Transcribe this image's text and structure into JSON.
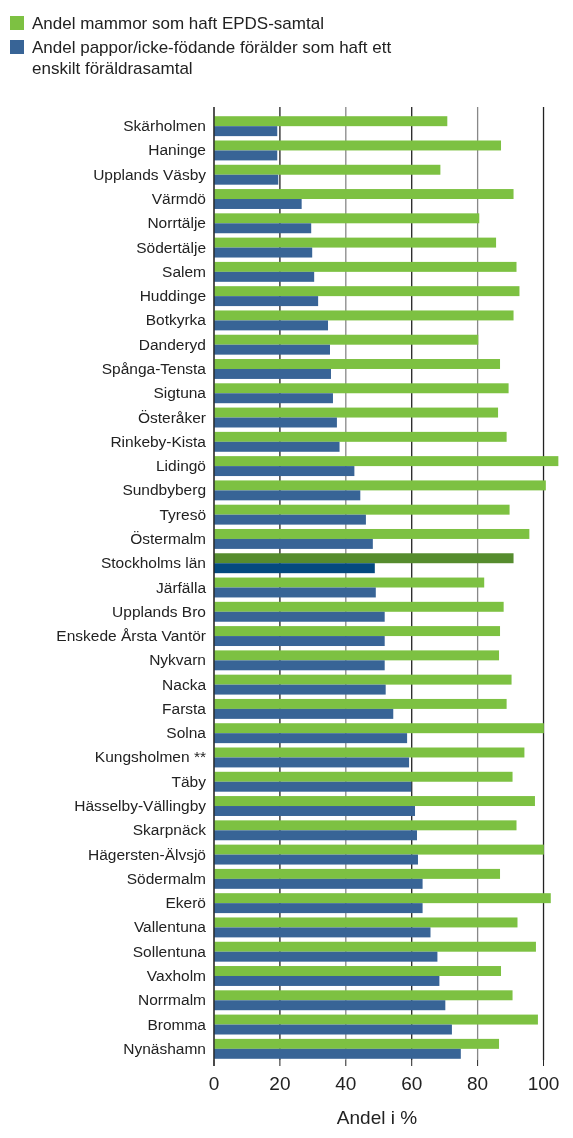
{
  "chart_data": {
    "type": "bar",
    "orientation": "horizontal",
    "xlabel": "Andel i %",
    "categories": [
      "Skärholmen",
      "Haninge",
      "Upplands Väsby",
      "Värmdö",
      "Norrtälje",
      "Södertälje",
      "Salem",
      "Huddinge",
      "Botkyrka",
      "Danderyd",
      "Spånga-Tensta",
      "Sigtuna",
      "Österåker",
      "Rinkeby-Kista",
      "Lidingö",
      "Sundbyberg",
      "Tyresö",
      "Östermalm",
      "Stockholms län",
      "Järfälla",
      "Upplands Bro",
      "Enskede Årsta Vantör",
      "Nykvarn",
      "Nacka",
      "Farsta",
      "Solna",
      "Kungsholmen **",
      "Täby",
      "Hässelby-Vällingby",
      "Skarpnäck",
      "Hägersten-Älvsjö",
      "Södermalm",
      "Ekerö",
      "Vallentuna",
      "Sollentuna",
      "Vaxholm",
      "Norrmalm",
      "Bromma",
      "Nynäshamn"
    ],
    "series": [
      {
        "name": "Andel mammor som haft EPDS-samtal",
        "color": "#7dc142",
        "colors": [
          "#7dc142",
          "#7dc142",
          "#7dc142",
          "#7dc142",
          "#7dc142",
          "#7dc142",
          "#7dc142",
          "#7dc142",
          "#7dc142",
          "#7dc142",
          "#7dc142",
          "#7dc142",
          "#7dc142",
          "#7dc142",
          "#7dc142",
          "#7dc142",
          "#7dc142",
          "#7dc142",
          "#568c2e",
          "#7dc142",
          "#7dc142",
          "#7dc142",
          "#7dc142",
          "#7dc142",
          "#7dc142",
          "#7dc142",
          "#7dc142",
          "#7dc142",
          "#7dc142",
          "#7dc142",
          "#7dc142",
          "#7dc142",
          "#7dc142",
          "#7dc142",
          "#7dc142",
          "#7dc142",
          "#7dc142",
          "#7dc142",
          "#7dc142"
        ],
        "values": [
          70.8,
          87.1,
          68.7,
          90.9,
          80.5,
          85.6,
          91.8,
          92.7,
          90.9,
          80.2,
          86.8,
          89.4,
          86.2,
          88.8,
          104.5,
          100.7,
          89.7,
          95.7,
          90.9,
          82.0,
          87.9,
          86.8,
          86.5,
          90.3,
          88.8,
          100.1,
          94.2,
          90.6,
          97.4,
          91.8,
          100.1,
          86.8,
          102.2,
          92.1,
          97.7,
          87.1,
          90.6,
          98.3,
          86.5
        ]
      },
      {
        "name": "Andel pappor/icke-födande förälder som haft ett enskilt föräldrasamtal",
        "color": "#386496",
        "colors": [
          "#386496",
          "#386496",
          "#386496",
          "#386496",
          "#386496",
          "#386496",
          "#386496",
          "#386496",
          "#386496",
          "#386496",
          "#386496",
          "#386496",
          "#386496",
          "#386496",
          "#386496",
          "#386496",
          "#386496",
          "#386496",
          "#044a7f",
          "#386496",
          "#386496",
          "#386496",
          "#386496",
          "#386496",
          "#386496",
          "#386496",
          "#386496",
          "#386496",
          "#386496",
          "#386496",
          "#386496",
          "#386496",
          "#386496",
          "#386496",
          "#386496",
          "#386496",
          "#386496",
          "#386496",
          "#386496"
        ],
        "values": [
          19.2,
          19.2,
          19.5,
          26.6,
          29.5,
          29.8,
          30.4,
          31.6,
          34.6,
          35.2,
          35.5,
          36.1,
          37.3,
          38.1,
          42.6,
          44.4,
          46.1,
          48.2,
          48.8,
          49.1,
          51.8,
          51.8,
          51.8,
          52.1,
          54.4,
          58.6,
          59.2,
          59.9,
          61.0,
          61.6,
          61.9,
          63.3,
          63.3,
          65.7,
          67.8,
          68.4,
          70.2,
          72.2,
          74.9
        ]
      }
    ],
    "xlim": [
      0,
      105
    ],
    "xticks": [
      0,
      20,
      40,
      60,
      80,
      100
    ],
    "grid": "x",
    "legend": "top left"
  }
}
